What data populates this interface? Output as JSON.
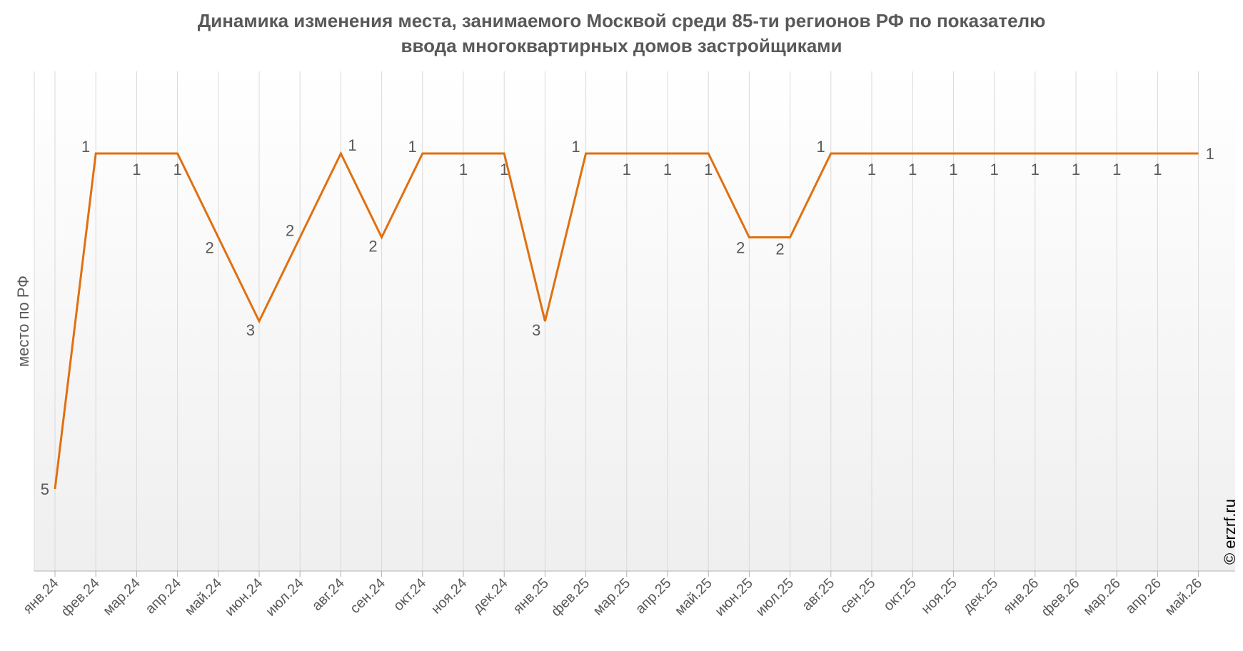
{
  "title_line1": "Динамика изменения места, занимаемого Москвой среди 85-ти регионов РФ по показателю",
  "title_line2": "ввода многоквартирных домов застройщиками",
  "credit": "© erzrf.ru",
  "colors": {
    "line": "#E07010",
    "grid": "#d9d9d9",
    "text": "#595959",
    "plot_bg_top": "#ffffff",
    "plot_bg_bottom": "#efefef"
  },
  "chart_data": {
    "type": "line",
    "title": "Динамика изменения места, занимаемого Москвой среди 85-ти регионов РФ по показателю ввода многоквартирных домов застройщиками",
    "xlabel": "",
    "ylabel": "место по РФ",
    "y_inverted": true,
    "ylim": [
      1,
      5
    ],
    "grid": "vertical",
    "categories": [
      "янв.24",
      "фев.24",
      "мар.24",
      "апр.24",
      "май.24",
      "июн.24",
      "июл.24",
      "авг.24",
      "сен.24",
      "окт.24",
      "ноя.24",
      "дек.24",
      "янв.25",
      "фев.25",
      "мар.25",
      "апр.25",
      "май.25",
      "июн.25",
      "июл.25",
      "авг.25",
      "сен.25",
      "окт.25",
      "ноя.25",
      "дек.25",
      "янв.26",
      "фев.26",
      "мар.26",
      "апр.26",
      "май.26"
    ],
    "values": [
      5,
      1,
      1,
      1,
      2,
      3,
      2,
      1,
      2,
      1,
      1,
      1,
      3,
      1,
      1,
      1,
      1,
      2,
      2,
      1,
      1,
      1,
      1,
      1,
      1,
      1,
      1,
      1,
      1
    ],
    "data_labels": [
      "5",
      "1",
      "1",
      "1",
      "2",
      "3",
      "2",
      "1",
      "2",
      "1",
      "1",
      "1",
      "3",
      "1",
      "1",
      "1",
      "1",
      "2",
      "2",
      "1",
      "1",
      "1",
      "1",
      "1",
      "1",
      "1",
      "1",
      "1",
      "1"
    ]
  }
}
